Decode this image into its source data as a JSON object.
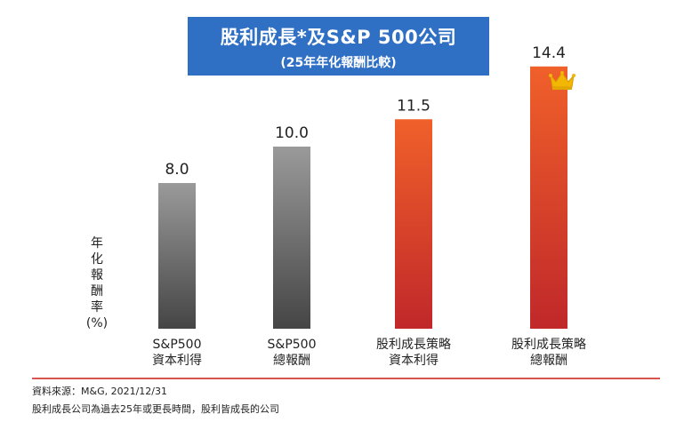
{
  "title": "股利成長*及S&P 500公司",
  "subtitle": "(25年年化報酬比較)",
  "ylabel_chars": [
    "年",
    "化",
    "報",
    "酬",
    "率",
    "(%)"
  ],
  "chart_data": {
    "type": "bar",
    "title": "股利成長*及S&P 500公司",
    "subtitle": "(25年年化報酬比較)",
    "ylabel": "年化報酬率(%)",
    "xlabel": "",
    "ylim": [
      0,
      16
    ],
    "grid": false,
    "categories": [
      [
        "S&P500",
        "資本利得"
      ],
      [
        "S&P500",
        "總報酬"
      ],
      [
        "股利成長策略",
        "資本利得"
      ],
      [
        "股利成長策略",
        "總報酬"
      ]
    ],
    "values": [
      8.0,
      10.0,
      11.5,
      14.4
    ],
    "value_labels": [
      "8.0",
      "10.0",
      "11.5",
      "14.4"
    ],
    "bar_colors": [
      [
        "#9a9a9a",
        "#454545"
      ],
      [
        "#9a9a9a",
        "#454545"
      ],
      [
        "#f0602a",
        "#c0282a"
      ],
      [
        "#f0602a",
        "#c0282a"
      ]
    ],
    "crown_on_index": 3
  },
  "footer": {
    "source": "資料來源：M&G, 2021/12/31",
    "note": "股利成長公司為過去25年或更長時間，股利皆成長的公司"
  },
  "colors": {
    "title_bg": "#2f6fc4",
    "footer_line": "#d9534f",
    "crown": "#f2b705"
  }
}
